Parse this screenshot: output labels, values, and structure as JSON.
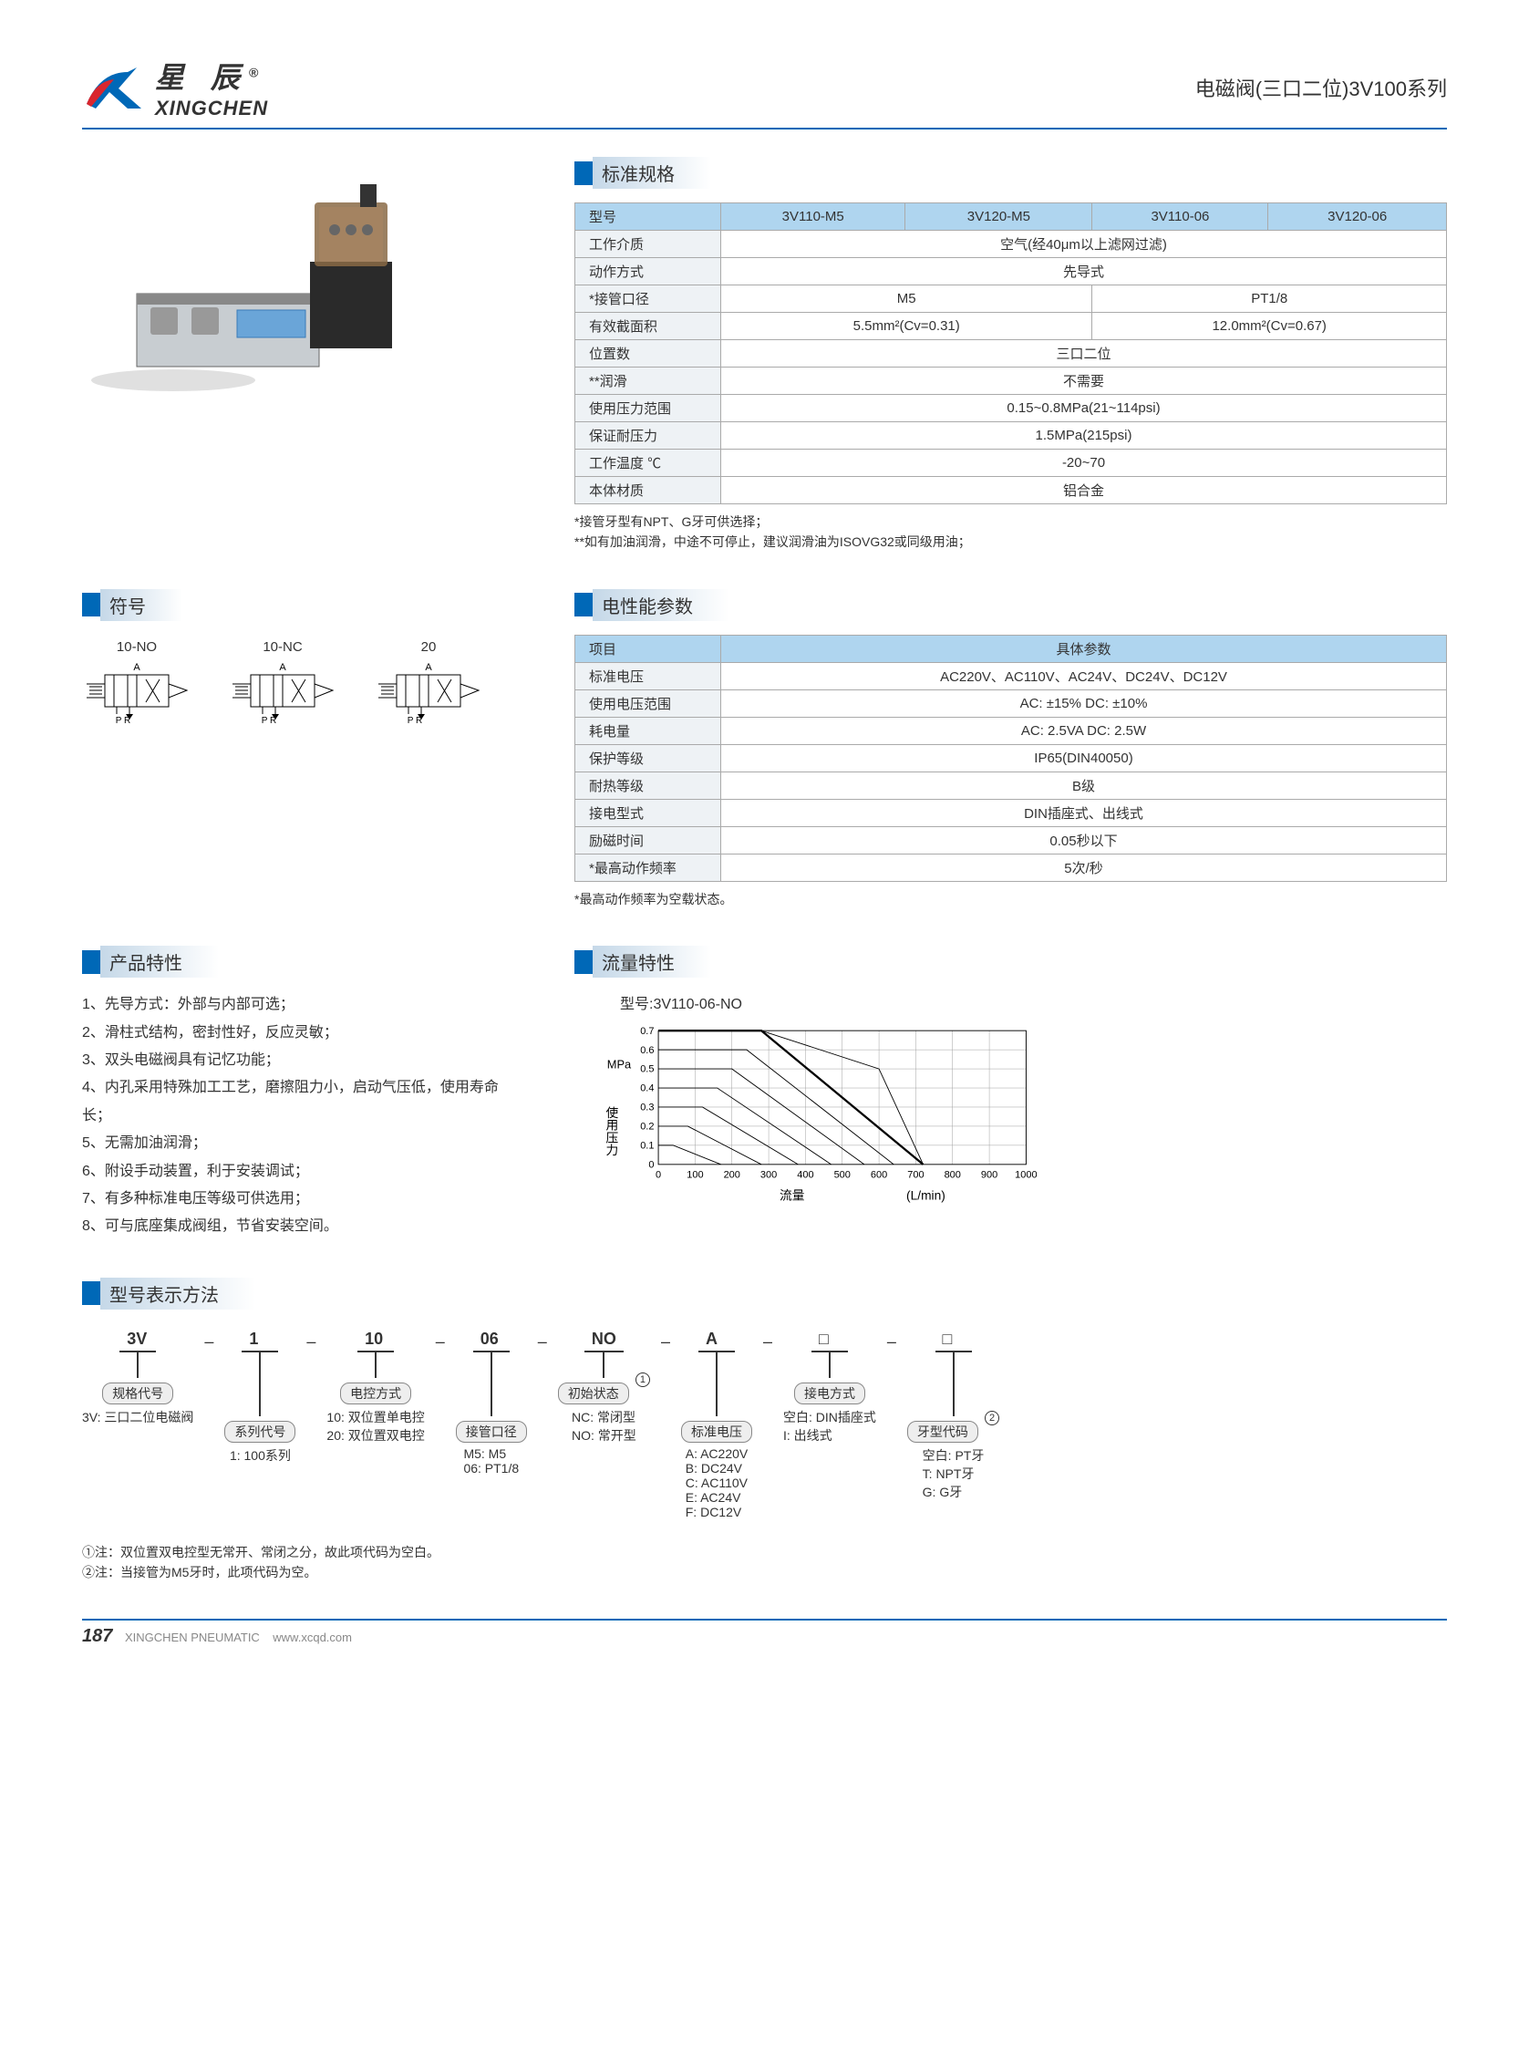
{
  "header": {
    "brand_cn": "星 辰",
    "brand_en": "XINGCHEN",
    "reg": "®",
    "page_title": "电磁阀(三口二位)3V100系列"
  },
  "spec": {
    "title": "标准规格",
    "cols": [
      "型号",
      "3V110-M5",
      "3V120-M5",
      "3V110-06",
      "3V120-06"
    ],
    "rows": [
      {
        "label": "工作介质",
        "value": "空气(经40μm以上滤网过滤)",
        "colspan": 4
      },
      {
        "label": "动作方式",
        "value": "先导式",
        "colspan": 4
      },
      {
        "label": "*接管口径",
        "values": [
          "M5",
          "PT1/8"
        ],
        "spans": [
          2,
          2
        ]
      },
      {
        "label": "有效截面积",
        "values": [
          "5.5mm²(Cv=0.31)",
          "12.0mm²(Cv=0.67)"
        ],
        "spans": [
          2,
          2
        ]
      },
      {
        "label": "位置数",
        "value": "三口二位",
        "colspan": 4
      },
      {
        "label": "**润滑",
        "value": "不需要",
        "colspan": 4
      },
      {
        "label": "使用压力范围",
        "value": "0.15~0.8MPa(21~114psi)",
        "colspan": 4
      },
      {
        "label": "保证耐压力",
        "value": "1.5MPa(215psi)",
        "colspan": 4
      },
      {
        "label": "工作温度 ℃",
        "value": "-20~70",
        "colspan": 4
      },
      {
        "label": "本体材质",
        "value": "铝合金",
        "colspan": 4
      }
    ],
    "note1": "*接管牙型有NPT、G牙可供选择；",
    "note2": "**如有加油润滑，中途不可停止，建议润滑油为ISOVG32或同级用油；"
  },
  "elec": {
    "title": "电性能参数",
    "cols": [
      "项目",
      "具体参数"
    ],
    "rows": [
      {
        "label": "标准电压",
        "value": "AC220V、AC110V、AC24V、DC24V、DC12V"
      },
      {
        "label": "使用电压范围",
        "value": "AC: ±15%    DC: ±10%"
      },
      {
        "label": "耗电量",
        "value": "AC: 2.5VA    DC: 2.5W"
      },
      {
        "label": "保护等级",
        "value": "IP65(DIN40050)"
      },
      {
        "label": "耐热等级",
        "value": "B级"
      },
      {
        "label": "接电型式",
        "value": "DIN插座式、出线式"
      },
      {
        "label": "励磁时间",
        "value": "0.05秒以下"
      },
      {
        "label": "*最高动作频率",
        "value": "5次/秒"
      }
    ],
    "note": "*最高动作频率为空载状态。"
  },
  "symbol": {
    "title": "符号",
    "items": [
      {
        "label": "10-NO",
        "sub": "A",
        "ports": "P R"
      },
      {
        "label": "10-NC",
        "sub": "A",
        "ports": "P R"
      },
      {
        "label": "20",
        "sub": "A",
        "ports": "P R"
      }
    ]
  },
  "features": {
    "title": "产品特性",
    "items": [
      "1、先导方式：外部与内部可选；",
      "2、滑柱式结构，密封性好，反应灵敏；",
      "3、双头电磁阀具有记忆功能；",
      "4、内孔采用特殊加工工艺，磨擦阻力小，启动气压低，使用寿命长；",
      "5、无需加油润滑；",
      "6、附设手动装置，利于安装调试；",
      "7、有多种标准电压等级可供选用；",
      "8、可与底座集成阀组，节省安装空间。"
    ]
  },
  "flow": {
    "title": "流量特性",
    "model": "型号:3V110-06-NO",
    "ylabel": "使用压力",
    "yunit": "MPa",
    "xlabel": "流量",
    "xunit": "(L/min)",
    "yticks": [
      "0",
      "0.1",
      "0.2",
      "0.3",
      "0.4",
      "0.5",
      "0.6",
      "0.7"
    ],
    "xticks": [
      "0",
      "100",
      "200",
      "300",
      "400",
      "500",
      "600",
      "700",
      "800",
      "900",
      "1000"
    ],
    "curves": [
      [
        [
          0,
          0.7
        ],
        [
          280,
          0.7
        ],
        [
          600,
          0.5
        ],
        [
          720,
          0
        ]
      ],
      [
        [
          0,
          0.6
        ],
        [
          240,
          0.6
        ],
        [
          640,
          0
        ]
      ],
      [
        [
          0,
          0.5
        ],
        [
          200,
          0.5
        ],
        [
          560,
          0
        ]
      ],
      [
        [
          0,
          0.4
        ],
        [
          160,
          0.4
        ],
        [
          470,
          0
        ]
      ],
      [
        [
          0,
          0.3
        ],
        [
          120,
          0.3
        ],
        [
          380,
          0
        ]
      ],
      [
        [
          0,
          0.2
        ],
        [
          80,
          0.2
        ],
        [
          280,
          0
        ]
      ],
      [
        [
          0,
          0.1
        ],
        [
          40,
          0.1
        ],
        [
          170,
          0
        ]
      ]
    ],
    "envelope": [
      [
        0,
        0.7
      ],
      [
        280,
        0.7
      ],
      [
        720,
        0
      ]
    ]
  },
  "model": {
    "title": "型号表示方法",
    "parts": [
      {
        "code": "3V",
        "box": "规格代号",
        "desc": "3V: 三口二位电磁阀"
      },
      {
        "code": "1",
        "box": "系列代号",
        "desc": "1: 100系列"
      },
      {
        "code": "10",
        "box": "电控方式",
        "desc": "10: 双位置单电控\n20: 双位置双电控"
      },
      {
        "code": "06",
        "box": "接管口径",
        "desc": "M5: M5\n06: PT1/8"
      },
      {
        "code": "NO",
        "box": "初始状态",
        "desc": "NC: 常闭型\nNO: 常开型",
        "note_num": "1"
      },
      {
        "code": "A",
        "box": "标准电压",
        "desc": "A: AC220V\nB: DC24V\nC: AC110V\nE: AC24V\nF: DC12V"
      },
      {
        "code": "□",
        "box": "接电方式",
        "desc": "空白: DIN插座式\nI: 出线式"
      },
      {
        "code": "□",
        "box": "牙型代码",
        "desc": "空白: PT牙\nT: NPT牙\nG: G牙",
        "note_num": "2"
      }
    ],
    "notes": [
      "①注：双位置双电控型无常开、常闭之分，故此项代码为空白。",
      "②注：当接管为M5牙时，此项代码为空。"
    ]
  },
  "footer": {
    "page": "187",
    "company": "XINGCHEN PNEUMATIC",
    "url": "www.xcqd.com"
  },
  "colors": {
    "primary": "#0068b7",
    "header_bg": "#afd5ef",
    "label_bg": "#eef2f5"
  }
}
